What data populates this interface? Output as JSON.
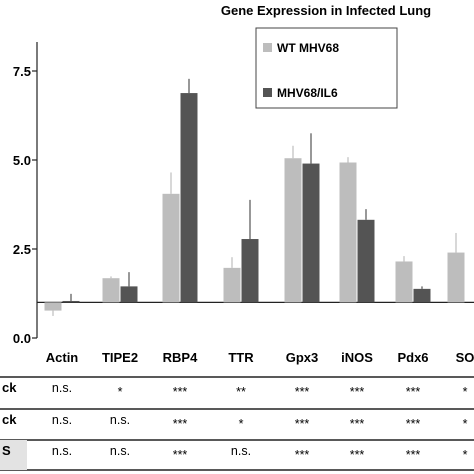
{
  "chart_data": {
    "type": "bar",
    "title": "Gene Expression in Infected Lung",
    "xlabel": "",
    "ylabel": "",
    "ylim": [
      0.0,
      8.5
    ],
    "yticks": [
      "0.0",
      "2.5",
      "5.0",
      "7.5"
    ],
    "baseline": 1.0,
    "categories": [
      "Actin",
      "TIPE2",
      "RBP4",
      "TTR",
      "Gpx3",
      "iNOS",
      "Pdx6",
      "SO"
    ],
    "series": [
      {
        "name": "WT MHV68",
        "color": "#bdbdbd",
        "values": [
          0.77,
          1.68,
          4.05,
          1.97,
          5.05,
          4.93,
          2.15,
          2.4
        ],
        "errors": [
          0.15,
          0.05,
          0.6,
          0.3,
          0.35,
          0.15,
          0.15,
          0.55
        ]
      },
      {
        "name": "MHV68/IL6",
        "color": "#545454",
        "values": [
          1.04,
          1.45,
          6.88,
          2.78,
          4.9,
          3.32,
          1.38,
          null
        ],
        "errors": [
          0.2,
          0.4,
          0.4,
          1.1,
          0.85,
          0.3,
          0.07,
          null
        ]
      }
    ],
    "legend_position": "top-right",
    "grid": false
  },
  "significance_table": {
    "rows": [
      {
        "label": "ck",
        "values": [
          "n.s.",
          "*",
          "***",
          "**",
          "***",
          "***",
          "***",
          "*"
        ]
      },
      {
        "label": "ck",
        "values": [
          "n.s.",
          "n.s.",
          "***",
          "*",
          "***",
          "***",
          "***",
          "*"
        ]
      },
      {
        "label": "S",
        "values": [
          "n.s.",
          "n.s.",
          "***",
          "n.s.",
          "***",
          "***",
          "***",
          "*"
        ]
      }
    ]
  }
}
